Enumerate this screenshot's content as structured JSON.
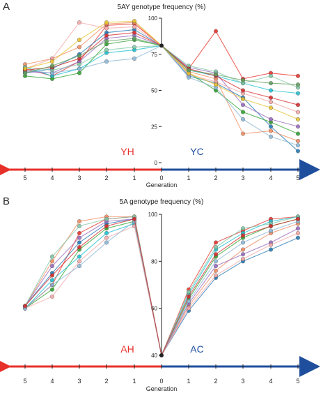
{
  "chart_data": [
    {
      "panel_letter": "A",
      "type": "line",
      "title": "5AY genotype frequency (%)",
      "xlabel": "Generation",
      "x_ticks": [
        "5",
        "4",
        "3",
        "2",
        "1",
        "0",
        "1",
        "2",
        "3",
        "4",
        "5"
      ],
      "y_ticks": [
        "0",
        "25",
        "50",
        "75",
        "100"
      ],
      "ylim": [
        0,
        100
      ],
      "left_label": "YH",
      "right_label": "YC",
      "left_color": "#e8302a",
      "right_color": "#1f4e9c",
      "start_value": 81,
      "left_series": [
        [
          96,
          95,
          70,
          60,
          65
        ],
        [
          92,
          90,
          75,
          65,
          62
        ],
        [
          85,
          82,
          62,
          58,
          60
        ],
        [
          97,
          96,
          80,
          72,
          68
        ],
        [
          78,
          76,
          65,
          60,
          66
        ],
        [
          88,
          86,
          70,
          62,
          63
        ],
        [
          94,
          93,
          97,
          72,
          65
        ],
        [
          80,
          78,
          68,
          64,
          66
        ],
        [
          72,
          70,
          65,
          62,
          64
        ],
        [
          90,
          88,
          72,
          66,
          64
        ],
        [
          98,
          97,
          85,
          70,
          65
        ],
        [
          86,
          84,
          74,
          67,
          62
        ]
      ],
      "right_series": [
        [
          65,
          91,
          58,
          62,
          60
        ],
        [
          60,
          55,
          45,
          25,
          8
        ],
        [
          62,
          50,
          35,
          28,
          20
        ],
        [
          63,
          58,
          20,
          22,
          15
        ],
        [
          64,
          60,
          55,
          50,
          48
        ],
        [
          66,
          62,
          40,
          30,
          25
        ],
        [
          61,
          56,
          48,
          42,
          35
        ],
        [
          67,
          63,
          55,
          60,
          52
        ],
        [
          59,
          52,
          30,
          18,
          12
        ],
        [
          65,
          60,
          50,
          45,
          40
        ],
        [
          62,
          54,
          44,
          38,
          30
        ],
        [
          64,
          61,
          57,
          55,
          54
        ]
      ]
    },
    {
      "panel_letter": "B",
      "type": "line",
      "title": "5A genotype frequency (%)",
      "xlabel": "Generation",
      "x_ticks": [
        "5",
        "4",
        "3",
        "2",
        "1",
        "0",
        "1",
        "2",
        "3",
        "4",
        "5"
      ],
      "y_ticks": [
        "40",
        "60",
        "80",
        "100"
      ],
      "ylim": [
        40,
        100
      ],
      "left_label": "AH",
      "right_label": "AC",
      "left_color": "#e8302a",
      "right_color": "#1f4e9c",
      "start_value": 40,
      "left_series": [
        [
          99,
          98,
          92,
          70,
          60
        ],
        [
          98,
          96,
          88,
          75,
          61
        ],
        [
          97,
          94,
          85,
          68,
          60
        ],
        [
          99,
          99,
          97,
          80,
          61
        ],
        [
          96,
          92,
          82,
          72,
          60
        ],
        [
          98,
          97,
          90,
          78,
          61
        ],
        [
          95,
          90,
          80,
          65,
          60
        ],
        [
          99,
          98,
          95,
          82,
          61
        ],
        [
          97,
          88,
          78,
          70,
          60
        ],
        [
          98,
          95,
          86,
          74,
          61
        ]
      ],
      "right_series": [
        [
          68,
          88,
          93,
          98,
          99
        ],
        [
          59,
          73,
          80,
          85,
          90
        ],
        [
          64,
          82,
          90,
          95,
          98
        ],
        [
          61,
          76,
          85,
          92,
          96
        ],
        [
          66,
          85,
          92,
          97,
          99
        ],
        [
          62,
          78,
          83,
          88,
          94
        ],
        [
          60,
          74,
          81,
          87,
          92
        ],
        [
          67,
          86,
          94,
          96,
          99
        ],
        [
          63,
          80,
          88,
          93,
          97
        ],
        [
          65,
          83,
          91,
          95,
          98
        ]
      ]
    }
  ],
  "palette": [
    "#e8302a",
    "#1f77b4",
    "#2ca02c",
    "#f08a5d",
    "#17becf",
    "#9467bd",
    "#f4a6a6",
    "#7fc7a5",
    "#8ab6d6",
    "#d62728",
    "#e6c229",
    "#5c9e5a"
  ]
}
